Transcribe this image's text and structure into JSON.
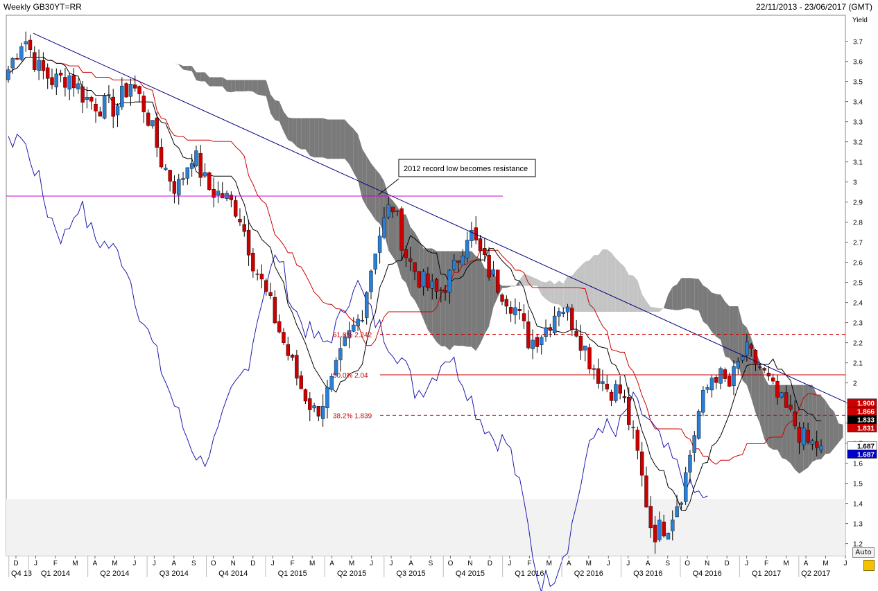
{
  "header": {
    "title": "Weekly GB30YT=RR",
    "date_range": "22/11/2013 - 23/06/2017 (GMT)"
  },
  "controls": {
    "auto_label": "Auto"
  },
  "chart_data": {
    "type": "candlestick",
    "y_axis_title": "Yield",
    "ylim": [
      1.14,
      3.83
    ],
    "y_ticks": [
      1.2,
      1.3,
      1.4,
      1.5,
      1.6,
      1.7,
      1.8,
      1.9,
      2,
      2.1,
      2.2,
      2.3,
      2.4,
      2.5,
      2.6,
      2.7,
      2.8,
      2.9,
      3,
      3.1,
      3.2,
      3.3,
      3.4,
      3.5,
      3.6,
      3.7
    ],
    "x_month_labels": [
      "D",
      "J",
      "F",
      "M",
      "A",
      "M",
      "J",
      "J",
      "A",
      "S",
      "O",
      "N",
      "D",
      "J",
      "F",
      "M",
      "A",
      "M",
      "J",
      "J",
      "A",
      "S",
      "O",
      "N",
      "D",
      "J",
      "F",
      "M",
      "A",
      "M",
      "J",
      "J",
      "A",
      "S",
      "O",
      "N",
      "D",
      "J",
      "F",
      "M",
      "A",
      "M",
      "J"
    ],
    "x_quarter_labels": [
      "Q4 13",
      "Q1 2014",
      "Q2 2014",
      "Q3 2014",
      "Q4 2014",
      "Q1 2015",
      "Q2 2015",
      "Q3 2015",
      "Q4 2015",
      "Q1 2016",
      "Q2 2016",
      "Q3 2016",
      "Q4 2016",
      "Q1 2017",
      "Q2 2017"
    ],
    "close_keys": [
      3.56,
      3.73,
      3.56,
      3.5,
      3.53,
      3.42,
      3.38,
      3.37,
      3.5,
      3.35,
      3.1,
      2.96,
      3.15,
      2.97,
      2.93,
      2.86,
      2.6,
      2.4,
      2.19,
      1.99,
      1.85,
      1.97,
      2.2,
      2.34,
      2.7,
      2.9,
      2.62,
      2.5,
      2.44,
      2.55,
      2.77,
      2.6,
      2.48,
      2.38,
      2.2,
      2.27,
      2.4,
      2.28,
      2.1,
      1.98,
      1.95,
      1.65,
      1.25,
      1.3,
      1.48,
      1.85,
      2.06,
      1.98,
      2.16,
      2.08,
      1.94,
      1.83,
      1.7,
      1.687
    ],
    "annotations": {
      "callout": "2012 record low becomes resistance",
      "resistance_2012_low": 2.93,
      "fib_618": "61.8% 2.242",
      "fib_500": "50.0% 2.04",
      "fib_382": "38.2% 1.839",
      "fib_levels": [
        2.242,
        2.04,
        1.839
      ]
    },
    "price_tags": [
      {
        "value": "1.900",
        "level": 1.9,
        "bg": "#cc0000",
        "fg": "#ffffff"
      },
      {
        "value": "1.866",
        "level": 1.866,
        "bg": "#cc0000",
        "fg": "#ffffff"
      },
      {
        "value": "1.833",
        "level": 1.833,
        "bg": "#000000",
        "fg": "#ffffff"
      },
      {
        "value": "1.831",
        "level": 1.831,
        "bg": "#cc0000",
        "fg": "#ffffff"
      },
      {
        "value": "1.687",
        "level": 1.687,
        "bg": "#ffffff",
        "fg": "#000000"
      },
      {
        "value": "1.687",
        "level": 1.652,
        "bg": "#0000cc",
        "fg": "#ffffff"
      }
    ],
    "colors": {
      "bull": "#2a7fd4",
      "bear": "#cc0000",
      "cloud_dark": "#7a7a7a",
      "cloud_light": "#c4c4c4",
      "kijun": "#cc0000",
      "tenkan": "#000000",
      "chikou": "#1a1ab0",
      "trendline": "#000080",
      "resistance": "#cc00cc",
      "fib": "#cc0000"
    }
  }
}
